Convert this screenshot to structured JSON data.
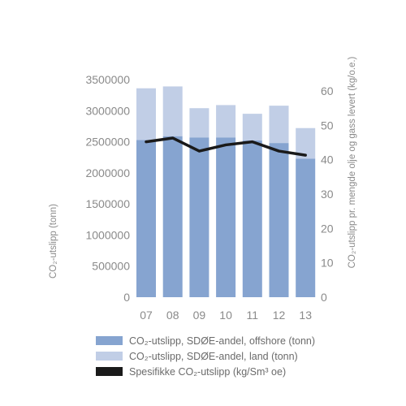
{
  "chart_data": {
    "type": "bar",
    "categories": [
      "07",
      "08",
      "09",
      "10",
      "11",
      "12",
      "13"
    ],
    "series": [
      {
        "name": "CO₂-utslipp, SDØE-andel, offshore (tonn)",
        "kind": "stacked-bar",
        "axis": "left",
        "color": "#86a4d0",
        "values": [
          2530000,
          2590000,
          2570000,
          2570000,
          2520000,
          2480000,
          2230000
        ]
      },
      {
        "name": "CO₂-utslipp, SDØE-andel, land (tonn)",
        "kind": "stacked-bar",
        "axis": "left",
        "color": "#c1cee6",
        "values": [
          830000,
          800000,
          470000,
          520000,
          430000,
          600000,
          490000
        ]
      },
      {
        "name": "Spesifikke CO₂-utslipp (kg/Sm³ oe)",
        "kind": "line",
        "axis": "right",
        "color": "#1a1a1a",
        "values": [
          45.2,
          46.3,
          42.5,
          44.3,
          45.2,
          42.5,
          41.3
        ]
      }
    ],
    "y_left": {
      "label": "CO₂-utslipp (tonn)",
      "ylim": [
        0,
        3500000
      ],
      "ticks": [
        "0",
        "500000",
        "1000000",
        "1500000",
        "2000000",
        "2500000",
        "3000000",
        "3500000"
      ]
    },
    "y_right": {
      "label": "CO₂-utslipp pr. mengde olje og gass levert (kg/o.e.)",
      "ylim": [
        0,
        63.3
      ],
      "ticks": [
        "0",
        "10",
        "20",
        "30",
        "40",
        "50",
        "60"
      ]
    },
    "grid": false,
    "legend_position": "bottom"
  }
}
